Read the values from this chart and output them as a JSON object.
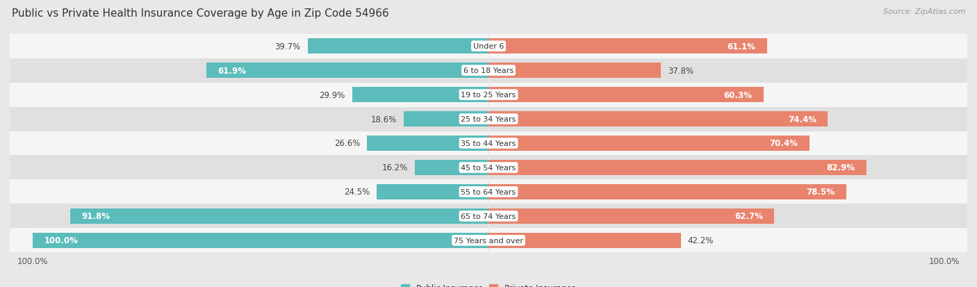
{
  "title": "Public vs Private Health Insurance Coverage by Age in Zip Code 54966",
  "source": "Source: ZipAtlas.com",
  "categories": [
    "Under 6",
    "6 to 18 Years",
    "19 to 25 Years",
    "25 to 34 Years",
    "35 to 44 Years",
    "45 to 54 Years",
    "55 to 64 Years",
    "65 to 74 Years",
    "75 Years and over"
  ],
  "public_values": [
    39.7,
    61.9,
    29.9,
    18.6,
    26.6,
    16.2,
    24.5,
    91.8,
    100.0
  ],
  "private_values": [
    61.1,
    37.8,
    60.3,
    74.4,
    70.4,
    82.9,
    78.5,
    62.7,
    42.2
  ],
  "public_color": "#5bbcbb",
  "private_color": "#e8846e",
  "public_label": "Public Insurance",
  "private_label": "Private Insurance",
  "bg_color": "#e8e8e8",
  "row_bg_odd": "#f5f5f5",
  "row_bg_even": "#e0e0e0",
  "bar_height": 0.62,
  "title_fontsize": 11,
  "label_fontsize": 8.5,
  "tick_fontsize": 8.5,
  "source_fontsize": 8
}
